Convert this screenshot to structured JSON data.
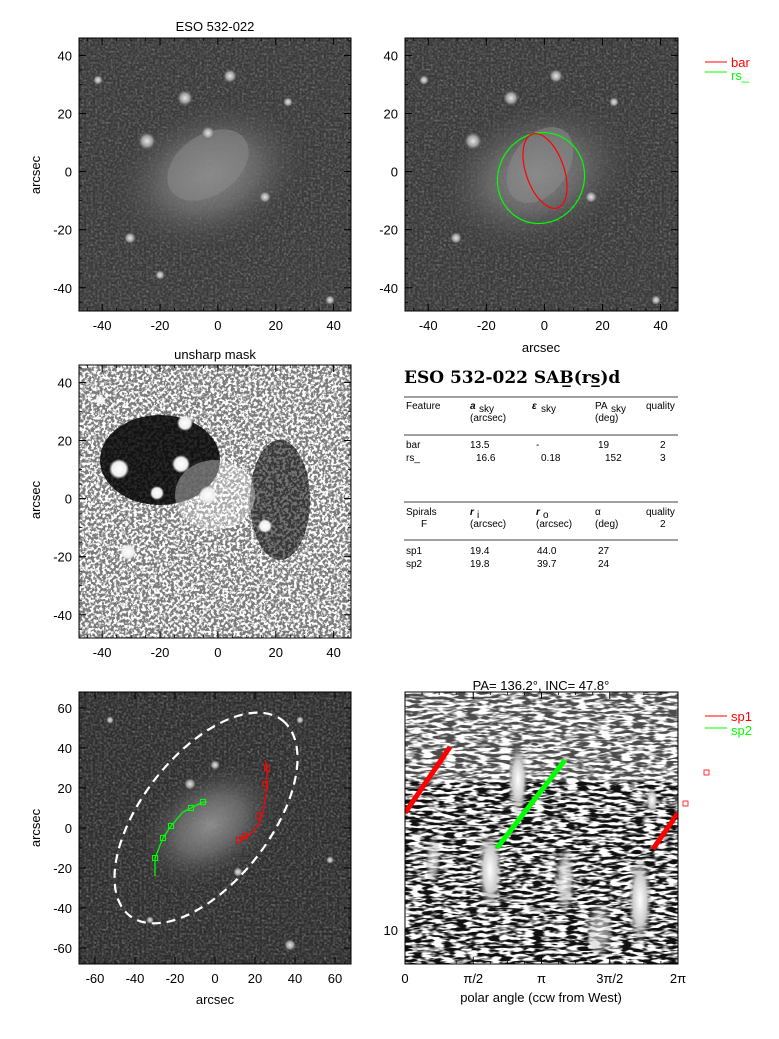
{
  "chart_data": [
    {
      "type": "image",
      "title": "ESO 532-022",
      "ylabel": "arcsec",
      "xlim": [
        -48,
        46
      ],
      "ylim": [
        -48,
        46
      ],
      "xticks": [
        "-40",
        "-20",
        "0",
        "20",
        "40"
      ],
      "yticks": [
        "40",
        "20",
        "0",
        "-20",
        "-40"
      ]
    },
    {
      "type": "image",
      "xlabel": "arcsec",
      "xlim": [
        -48,
        46
      ],
      "ylim": [
        -48,
        46
      ],
      "xticks": [
        "-40",
        "-20",
        "0",
        "20",
        "40"
      ],
      "yticks": [
        "40",
        "20",
        "0",
        "-20",
        "-40"
      ],
      "legend": [
        {
          "name": "bar",
          "color": "#ff0000"
        },
        {
          "name": "rs_",
          "color": "#00ff00"
        }
      ],
      "legend_placement": "top-right, outside"
    },
    {
      "type": "image",
      "title": "unsharp mask",
      "ylabel": "arcsec",
      "xlim": [
        -48,
        46
      ],
      "ylim": [
        -48,
        46
      ],
      "xticks": [
        "-40",
        "-20",
        "0",
        "20",
        "40"
      ],
      "yticks": [
        "40",
        "20",
        "0",
        "-20",
        "-40"
      ]
    },
    {
      "type": "table",
      "title": "ESO 532-022  SAB̲(rs̲)d",
      "headers1": [
        "Feature",
        "a",
        "sky",
        "(arcsec)",
        "ε",
        "sky",
        "PA",
        "sky",
        "(deg)",
        "quality"
      ],
      "rows1": [
        [
          "bar",
          "13.5",
          "-",
          "19",
          "2"
        ],
        [
          "rs_",
          "16.6",
          "0.18",
          "152",
          "3"
        ]
      ],
      "headers2": [
        "Spirals",
        "F",
        "r",
        "i",
        "(arcsec)",
        "r",
        "o",
        "(arcsec)",
        "α",
        "(deg)",
        "quality",
        "2"
      ],
      "rows2": [
        [
          "sp1",
          "19.4",
          "44.0",
          "27"
        ],
        [
          "sp2",
          "19.8",
          "39.7",
          "24"
        ]
      ]
    },
    {
      "type": "image",
      "ylabel": "arcsec",
      "xlabel": "arcsec",
      "xlim": [
        -68,
        68
      ],
      "ylim": [
        -68,
        68
      ],
      "xticks": [
        "-60",
        "-40",
        "-20",
        "0",
        "20",
        "40",
        "60"
      ],
      "yticks": [
        "60",
        "40",
        "20",
        "0",
        "-20",
        "-40",
        "-60"
      ],
      "spirals": [
        {
          "color": "#00ff00",
          "points": [
            [
              -30,
              -24
            ],
            [
              -30,
              -15
            ],
            [
              -26,
              -5
            ],
            [
              -22,
              1
            ],
            [
              -16,
              8
            ],
            [
              -10,
              11
            ],
            [
              -6,
              13
            ],
            [
              -4,
              13
            ]
          ],
          "markers": [
            [
              -30,
              -15
            ],
            [
              -26,
              -5
            ],
            [
              -22,
              1
            ],
            [
              -12,
              10
            ],
            [
              -6,
              13
            ]
          ]
        },
        {
          "color": "#ff0000",
          "points": [
            [
              12,
              -6
            ],
            [
              18,
              -3
            ],
            [
              22,
              2
            ],
            [
              24,
              8
            ],
            [
              25,
              14
            ],
            [
              26,
              22
            ],
            [
              26,
              28
            ],
            [
              25,
              34
            ]
          ],
          "markers": [
            [
              12,
              -6
            ],
            [
              15,
              -4
            ],
            [
              22,
              6
            ],
            [
              25,
              22
            ],
            [
              26,
              30
            ]
          ]
        }
      ],
      "ellipse": {
        "cx": -4.5,
        "cy": 5,
        "rx": 62,
        "ry": 32,
        "angle_deg": 52
      }
    },
    {
      "type": "image",
      "title": "PA= 136.2°, INC=  47.8°",
      "xlabel": "polar angle (ccw from West)",
      "xticks": [
        "0",
        "π/2",
        "π",
        "3π/2",
        "2π"
      ],
      "ytick": "10",
      "legend": [
        {
          "name": "sp1",
          "color": "#ff0000"
        },
        {
          "name": "sp2",
          "color": "#00ff00"
        }
      ],
      "legend_placement": "top-right, outside"
    }
  ]
}
